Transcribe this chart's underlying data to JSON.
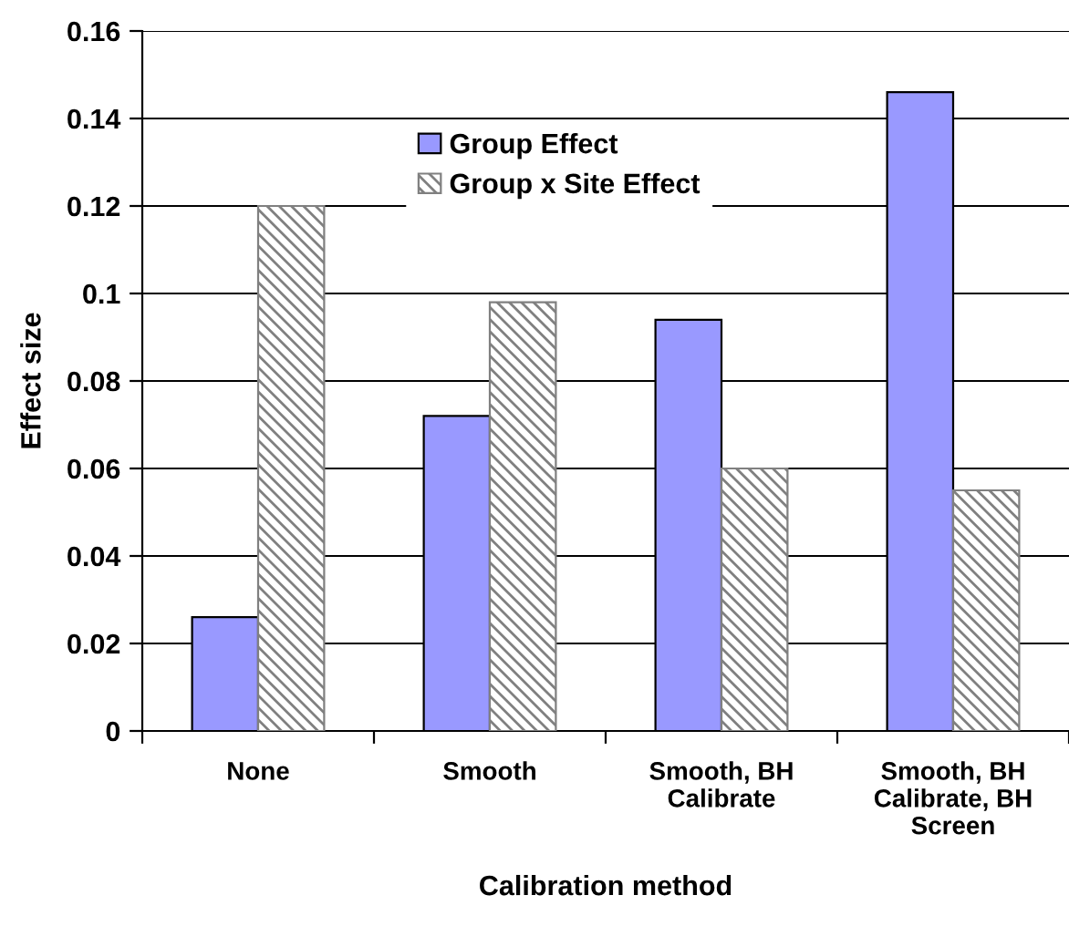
{
  "chart_data": {
    "type": "bar",
    "xlabel": "Calibration method",
    "ylabel": "Effect size",
    "categories": [
      "None",
      "Smooth",
      "Smooth, BH\nCalibrate",
      "Smooth, BH\nCalibrate, BH\nScreen"
    ],
    "series": [
      {
        "name": "Group Effect",
        "color": "#9999ff",
        "values": [
          0.026,
          0.072,
          0.094,
          0.146
        ]
      },
      {
        "name": "Group x Site Effect",
        "color": "#808080",
        "values": [
          0.12,
          0.098,
          0.06,
          0.055
        ]
      }
    ],
    "ylim": [
      0,
      0.16
    ],
    "yticks": [
      0,
      {
        "value": 0.02,
        "label": "0.02"
      },
      {
        "value": 0.04,
        "label": "0.04"
      },
      {
        "value": 0.06,
        "label": "0.06"
      },
      {
        "value": 0.08,
        "label": "0.08"
      },
      {
        "value": 0.1,
        "label": "0.1"
      },
      {
        "value": 0.12,
        "label": "0.12"
      },
      {
        "value": 0.14,
        "label": "0.14"
      },
      {
        "value": 0.16,
        "label": "0.16"
      }
    ],
    "grid": "y",
    "legend": "top"
  }
}
